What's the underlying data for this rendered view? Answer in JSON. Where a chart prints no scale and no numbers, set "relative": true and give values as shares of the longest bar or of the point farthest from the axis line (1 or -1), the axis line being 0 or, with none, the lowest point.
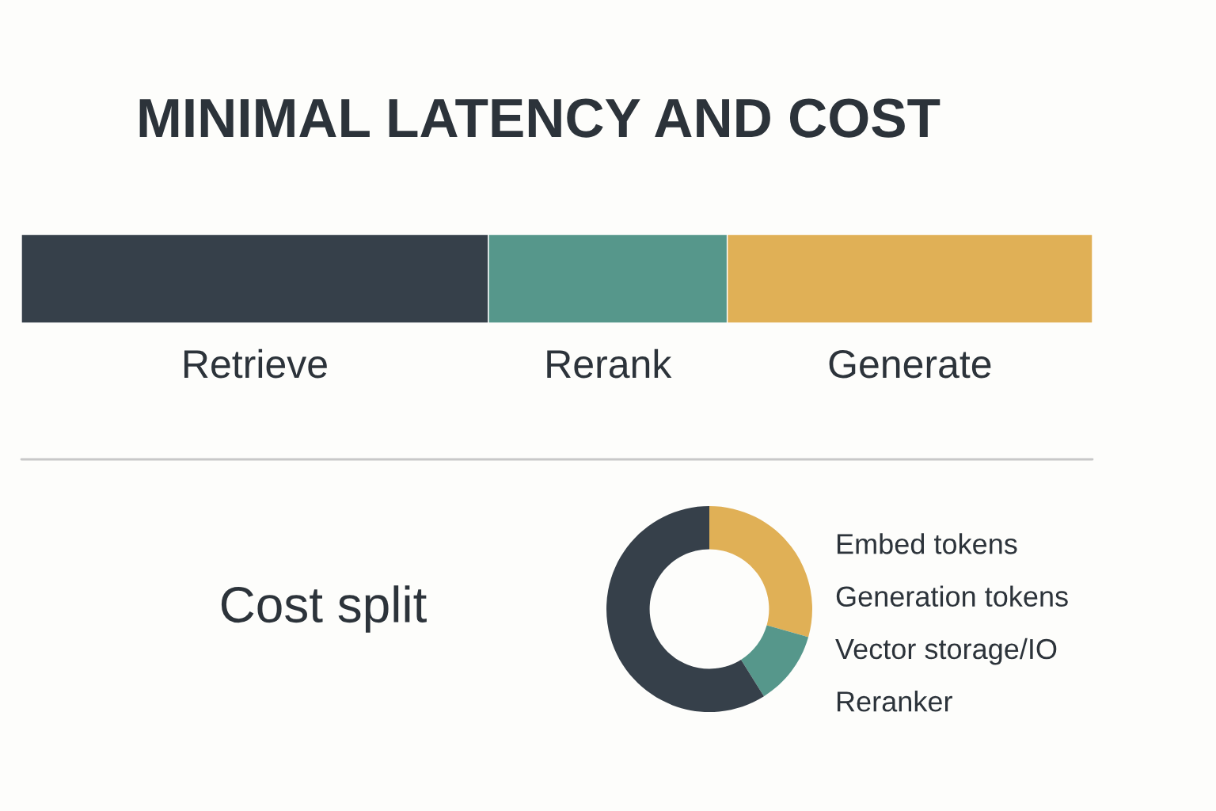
{
  "chart_data": [
    {
      "type": "bar",
      "title": "MINIMAL LATENCY AND COST",
      "orientation": "horizontal",
      "stacked": true,
      "relative": true,
      "categories": [
        null
      ],
      "series": [
        {
          "name": "Retrieve",
          "color": "#36404a",
          "values": [
            0.436
          ]
        },
        {
          "name": "Rerank",
          "color": "#56978b",
          "values": [
            0.223
          ]
        },
        {
          "name": "Generate",
          "color": "#e0b056",
          "values": [
            0.341
          ]
        }
      ]
    },
    {
      "type": "donut",
      "title": "Cost split",
      "categories": [
        null,
        null,
        null
      ],
      "values": [
        29.4,
        11.7,
        58.9
      ],
      "colors": [
        "#e0b056",
        "#56978b",
        "#36404a"
      ],
      "annotations": [
        "Embed tokens",
        "Generation tokens",
        "Vector storage/IO",
        "Reranker"
      ]
    }
  ]
}
